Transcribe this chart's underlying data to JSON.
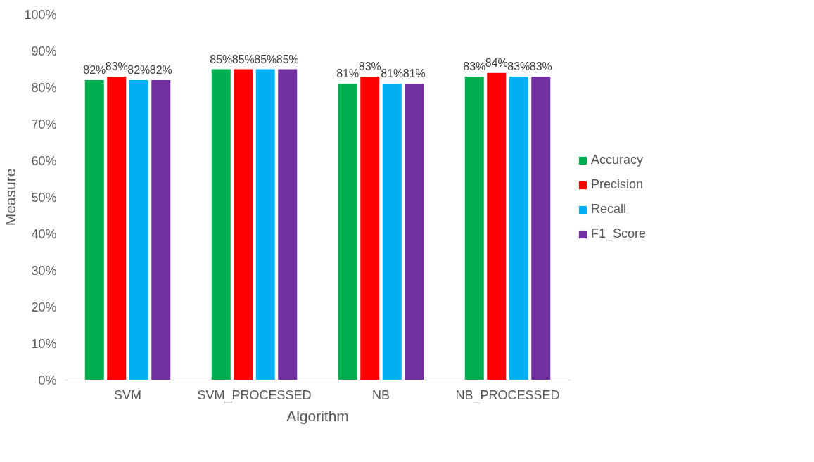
{
  "chart_data": {
    "type": "bar",
    "xlabel": "Algorithm",
    "ylabel": "Measure",
    "categories": [
      "SVM",
      "SVM_PROCESSED",
      "NB",
      "NB_PROCESSED"
    ],
    "series": [
      {
        "name": "Accuracy",
        "color": "#00b050",
        "values": [
          82,
          85,
          81,
          83
        ],
        "value_labels": [
          "82%",
          "85%",
          "81%",
          "83%"
        ]
      },
      {
        "name": "Precision",
        "color": "#ff0000",
        "values": [
          83,
          85,
          83,
          84
        ],
        "value_labels": [
          "83%",
          "85%",
          "83%",
          "84%"
        ]
      },
      {
        "name": "Recall",
        "color": "#00b0f0",
        "values": [
          82,
          85,
          81,
          83
        ],
        "value_labels": [
          "82%",
          "85%",
          "81%",
          "83%"
        ]
      },
      {
        "name": "F1_Score",
        "color": "#7030a0",
        "values": [
          82,
          85,
          81,
          83
        ],
        "value_labels": [
          "82%",
          "85%",
          "81%",
          "83%"
        ]
      }
    ],
    "ylim": [
      0,
      100
    ],
    "yticks": [
      {
        "value": 0,
        "label": "0%"
      },
      {
        "value": 10,
        "label": "10%"
      },
      {
        "value": 20,
        "label": "20%"
      },
      {
        "value": 30,
        "label": "30%"
      },
      {
        "value": 40,
        "label": "40%"
      },
      {
        "value": 50,
        "label": "50%"
      },
      {
        "value": 60,
        "label": "60%"
      },
      {
        "value": 70,
        "label": "70%"
      },
      {
        "value": 80,
        "label": "80%"
      },
      {
        "value": 90,
        "label": "90%"
      },
      {
        "value": 100,
        "label": "100%"
      }
    ],
    "grid": false,
    "legend": "right"
  }
}
